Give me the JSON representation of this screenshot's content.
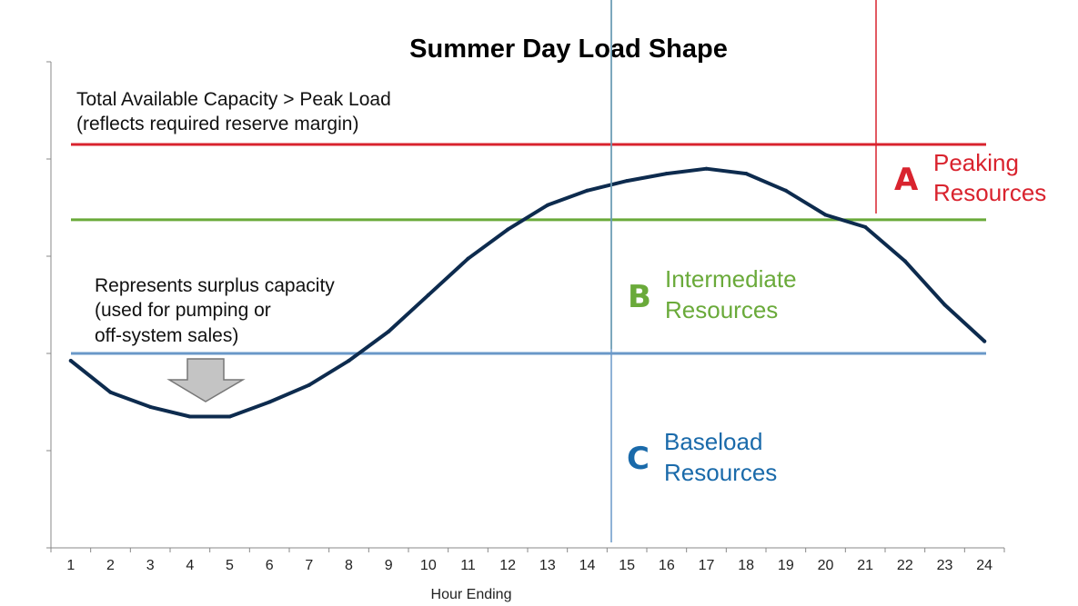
{
  "chart_data": {
    "type": "line",
    "title": "Summer Day Load Shape",
    "xlabel": "Hour Ending",
    "ylabel": "",
    "x": [
      1,
      2,
      3,
      4,
      5,
      6,
      7,
      8,
      9,
      10,
      11,
      12,
      13,
      14,
      15,
      16,
      17,
      18,
      19,
      20,
      21,
      22,
      23,
      24
    ],
    "ylim": [
      0,
      100
    ],
    "series": [
      {
        "name": "Load",
        "color": "#0d2b4e",
        "values": [
          38.5,
          32,
          29,
          27,
          27,
          30,
          33.5,
          38.5,
          44.5,
          52,
          59.5,
          65.5,
          70.5,
          73.5,
          75.5,
          77,
          78,
          77,
          73.5,
          68.5,
          66,
          59,
          50,
          42.5
        ]
      }
    ],
    "levels": {
      "peaking_capacity": {
        "value": 83,
        "color": "#d9232e"
      },
      "intermediate": {
        "value": 67.5,
        "color": "#6aaa3a"
      },
      "baseload": {
        "value": 40,
        "color": "#6a98c8"
      }
    },
    "annotations": {
      "capacity_note": [
        "Total Available Capacity > Peak Load",
        "(reflects required reserve margin)"
      ],
      "surplus_note": [
        "Represents surplus capacity",
        "(used for pumping or",
        "off-system sales)"
      ],
      "zone_a": {
        "letter": "A",
        "label": [
          "Peaking",
          "Resources"
        ],
        "color": "#d9232e"
      },
      "zone_b": {
        "letter": "B",
        "label": [
          "Intermediate",
          "Resources"
        ],
        "color": "#6aaa3a"
      },
      "zone_c": {
        "letter": "C",
        "label": [
          "Baseload",
          "Resources"
        ],
        "color": "#1a6aaa"
      }
    }
  }
}
